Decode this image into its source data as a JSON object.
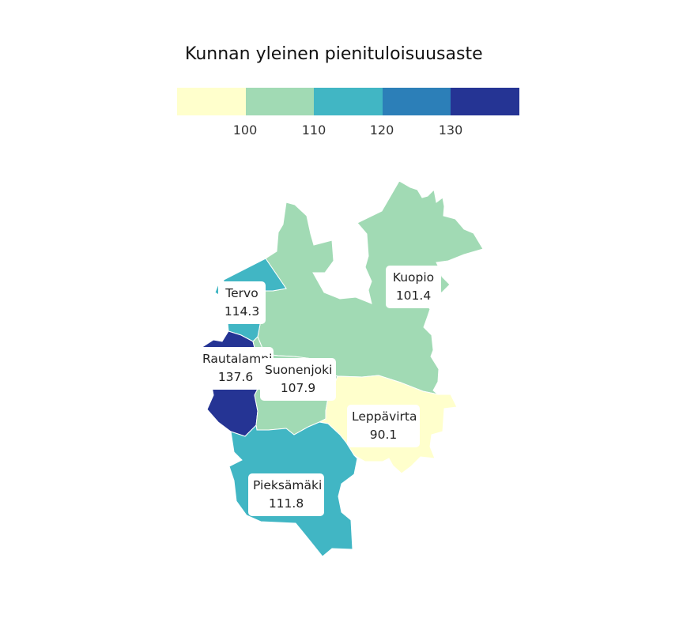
{
  "title": "Kunnan yleinen pienituloisuusaste",
  "legend": {
    "colors": [
      "#ffffcc",
      "#a1dab4",
      "#41b6c4",
      "#2c7fb8",
      "#253494"
    ],
    "ticks": [
      "100",
      "110",
      "120",
      "130"
    ]
  },
  "regions": [
    {
      "id": "kuopio",
      "name": "Kuopio",
      "value": "101.4",
      "color": "#a1dab4"
    },
    {
      "id": "tervo",
      "name": "Tervo",
      "value": "114.3",
      "color": "#41b6c4"
    },
    {
      "id": "rautalampi",
      "name": "Rautalampi",
      "value": "137.6",
      "color": "#253494"
    },
    {
      "id": "suonenjoki",
      "name": "Suonenjoki",
      "value": "107.9",
      "color": "#a1dab4"
    },
    {
      "id": "leppavirta",
      "name": "Leppävirta",
      "value": "90.1",
      "color": "#ffffcc"
    },
    {
      "id": "pieksamaki",
      "name": "Pieksämäki",
      "value": "111.8",
      "color": "#41b6c4"
    }
  ]
}
